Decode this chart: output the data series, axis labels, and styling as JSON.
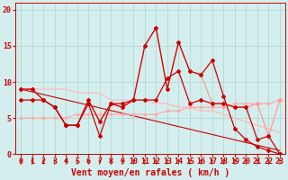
{
  "xlabel": "Vent moyen/en rafales ( km/h )",
  "background_color": "#d4eeee",
  "grid_color": "#aad4d4",
  "xlim": [
    -0.5,
    23.5
  ],
  "ylim": [
    0,
    21
  ],
  "xticks": [
    0,
    1,
    2,
    3,
    4,
    5,
    6,
    7,
    8,
    9,
    10,
    11,
    12,
    13,
    14,
    15,
    16,
    17,
    18,
    19,
    20,
    21,
    22,
    23
  ],
  "yticks": [
    0,
    5,
    10,
    15,
    20
  ],
  "series": [
    {
      "x": [
        0,
        1,
        2,
        3,
        4,
        5,
        6,
        7,
        8,
        9,
        10,
        11,
        12,
        13,
        14,
        15,
        16,
        17,
        18,
        19,
        20,
        21,
        22,
        23
      ],
      "y": [
        9.0,
        9.0,
        7.5,
        6.5,
        4.0,
        4.0,
        7.0,
        2.5,
        7.0,
        6.5,
        7.5,
        15.0,
        17.5,
        9.0,
        15.5,
        11.5,
        11.0,
        13.0,
        8.0,
        3.5,
        2.0,
        1.0,
        0.5,
        0.0
      ],
      "color": "#cc0000",
      "linewidth": 0.9,
      "marker": "D",
      "markersize": 2.0,
      "zorder": 5
    },
    {
      "x": [
        0,
        1,
        2,
        3,
        4,
        5,
        6,
        7,
        8,
        9,
        10,
        11,
        12,
        13,
        14,
        15,
        16,
        17,
        18,
        19,
        20,
        21,
        22,
        23
      ],
      "y": [
        9.0,
        9.0,
        7.5,
        6.5,
        4.0,
        4.0,
        7.5,
        4.5,
        7.0,
        6.5,
        7.5,
        15.0,
        17.5,
        9.0,
        15.5,
        11.5,
        11.0,
        7.0,
        7.0,
        6.5,
        6.5,
        7.0,
        2.5,
        7.5
      ],
      "color": "#ff9999",
      "linewidth": 0.9,
      "marker": "D",
      "markersize": 2.0,
      "zorder": 4
    },
    {
      "x": [
        0,
        1,
        2,
        3,
        4,
        5,
        6,
        7,
        8,
        9,
        10,
        11,
        12,
        13,
        14,
        15,
        16,
        17,
        18,
        19,
        20,
        21,
        22,
        23
      ],
      "y": [
        7.5,
        7.5,
        7.5,
        6.5,
        4.0,
        4.0,
        7.5,
        4.5,
        7.0,
        7.0,
        7.5,
        7.5,
        7.5,
        10.5,
        11.5,
        7.0,
        7.5,
        7.0,
        7.0,
        6.5,
        6.5,
        2.0,
        2.5,
        0.0
      ],
      "color": "#cc0000",
      "linewidth": 0.9,
      "marker": "D",
      "markersize": 2.0,
      "zorder": 5
    },
    {
      "x": [
        0,
        1,
        2,
        3,
        4,
        5,
        6,
        7,
        8,
        9,
        10,
        11,
        12,
        13,
        14,
        15,
        16,
        17,
        18,
        19,
        20,
        21,
        22,
        23
      ],
      "y": [
        5.0,
        5.0,
        5.0,
        5.0,
        5.0,
        5.5,
        5.5,
        5.5,
        5.5,
        5.5,
        5.5,
        5.5,
        5.5,
        6.0,
        6.0,
        6.5,
        6.5,
        6.5,
        6.5,
        7.0,
        7.0,
        7.0,
        7.0,
        7.5
      ],
      "color": "#ffaaaa",
      "linewidth": 0.9,
      "marker": "D",
      "markersize": 1.5,
      "zorder": 3
    },
    {
      "x": [
        0,
        1,
        2,
        3,
        4,
        5,
        6,
        7,
        8,
        9,
        10,
        11,
        12,
        13,
        14,
        15,
        16,
        17,
        18,
        19,
        20,
        21,
        22,
        23
      ],
      "y": [
        9.0,
        9.0,
        9.0,
        9.0,
        9.0,
        8.5,
        8.5,
        8.5,
        7.5,
        7.5,
        7.5,
        7.5,
        7.0,
        7.0,
        6.5,
        6.5,
        6.0,
        6.0,
        5.5,
        5.0,
        4.5,
        4.0,
        3.5,
        3.0
      ],
      "color": "#ffbbbb",
      "linewidth": 0.9,
      "marker": null,
      "markersize": 0,
      "zorder": 2
    },
    {
      "x": [
        0,
        23
      ],
      "y": [
        9.0,
        0.5
      ],
      "color": "#cc0000",
      "linewidth": 0.8,
      "marker": null,
      "markersize": 0,
      "zorder": 2
    }
  ],
  "arrow_color": "#cc0000",
  "xlabel_fontsize": 7,
  "tick_fontsize": 6,
  "tick_color": "#cc0000",
  "axis_color": "#cc0000"
}
